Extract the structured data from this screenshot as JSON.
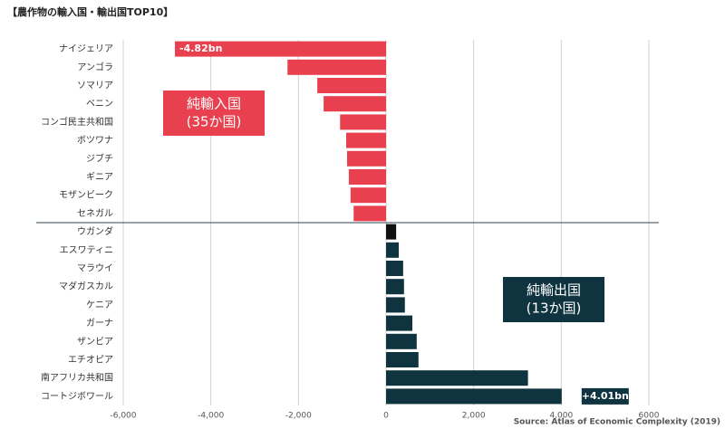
{
  "chart_data": {
    "type": "hbar",
    "title": "【農作物の輸入国・輸出国TOP10】",
    "source": "Source: Atlas of Economic Complexity (2019)",
    "categories": [
      "ナイジェリア",
      "アンゴラ",
      "ソマリア",
      "ベニン",
      "コンゴ民主共和国",
      "ボツワナ",
      "ジブチ",
      "ギニア",
      "モザンビーク",
      "セネガル",
      "ウガンダ",
      "エスワティニ",
      "マラウイ",
      "マダガスカル",
      "ケニア",
      "ガーナ",
      "ザンビア",
      "エチオピア",
      "南アフリカ共和国",
      "コートジボワール"
    ],
    "values": [
      -4820,
      -2250,
      -1570,
      -1425,
      -1050,
      -910,
      -890,
      -850,
      -810,
      -740,
      230,
      290,
      390,
      410,
      430,
      600,
      700,
      740,
      3240,
      4010
    ],
    "value_labels": [
      "-4.82bn",
      null,
      null,
      null,
      null,
      null,
      null,
      null,
      null,
      null,
      null,
      null,
      null,
      null,
      null,
      null,
      null,
      null,
      null,
      "+4.01bn"
    ],
    "colors": [
      "#e8404f",
      "#e8404f",
      "#e8404f",
      "#e8404f",
      "#e8404f",
      "#e8404f",
      "#e8404f",
      "#e8404f",
      "#e8404f",
      "#e8404f",
      "#111111",
      "#0f3440",
      "#0f3440",
      "#0f3440",
      "#0f3440",
      "#0f3440",
      "#0f3440",
      "#0f3440",
      "#0f3440",
      "#0f3440"
    ],
    "xlim": [
      -6000,
      6000
    ],
    "xticks": [
      {
        "value": -6000,
        "label": "-6,000"
      },
      {
        "value": -4000,
        "label": "-4,000"
      },
      {
        "value": -2000,
        "label": "-2,000"
      },
      0,
      {
        "value": 2000,
        "label": "2,000"
      },
      {
        "value": 4000,
        "label": "4,000"
      },
      6000
    ],
    "grid": true,
    "annotations": [
      {
        "lines": [
          "純輸入国",
          "(35か国)"
        ],
        "color": "#e8404f"
      },
      {
        "lines": [
          "純輸出国",
          "(13か国)"
        ],
        "color": "#0f3440"
      }
    ]
  }
}
